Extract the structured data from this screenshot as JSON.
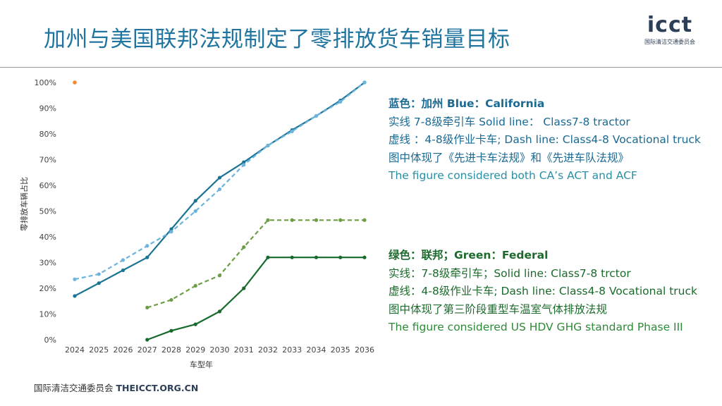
{
  "header": {
    "title": "加州与美国联邦法规制定了零排放货车销量目标"
  },
  "logo": {
    "mark": "icct",
    "subtitle": "国际清洁交通委员会"
  },
  "notes": {
    "california": {
      "heading": "蓝色：加州  Blue：California",
      "lines": [
        "实线 7-8级牵引车 Solid line：  Class7-8 tractor",
        "虚线 ：4-8级作业卡车; Dash line: Class4-8 Vocational truck",
        "图中体现了《先进卡车法规》和《先进车队法规》",
        "The figure considered both CA’s ACT and ACF"
      ]
    },
    "federal": {
      "heading": "绿色：联邦；Green：Federal",
      "lines": [
        "实线：7-8级牵引车；Solid line: Class7-8 trctor",
        "虚线：4-8级作业卡车; Dash line: Class4-8 Vocational truck",
        "图中体现了第三阶段重型车温室气体排放法规",
        "The figure considered US HDV GHG standard Phase III"
      ]
    }
  },
  "footer": {
    "org": "国际清洁交通委员会",
    "site": "THEICCT.ORG.CN"
  },
  "colors": {
    "ca_solid": "#1a7394",
    "ca_dash": "#6cb4dd",
    "fed_solid": "#166b2c",
    "fed_dash": "#6c9e43",
    "marker": "#ee8a35"
  },
  "chart_data": {
    "type": "line",
    "x": [
      2024,
      2025,
      2026,
      2027,
      2028,
      2029,
      2030,
      2031,
      2032,
      2033,
      2034,
      2035,
      2036
    ],
    "xlabel": "车型年",
    "ylabel": "零排放车辆占比",
    "ylim": [
      0,
      100
    ],
    "yticks": [
      0,
      10,
      20,
      30,
      40,
      50,
      60,
      70,
      80,
      90,
      100
    ],
    "ytick_labels": [
      "0%",
      "10%",
      "20%",
      "30%",
      "40%",
      "50%",
      "60%",
      "70%",
      "80%",
      "90%",
      "100%"
    ],
    "grid": false,
    "series": [
      {
        "name": "California Class7-8 tractor",
        "style": "solid",
        "color": "#1a7394",
        "values": [
          17,
          22,
          27,
          32,
          43,
          54,
          63,
          69,
          75.5,
          81.5,
          87,
          93,
          100
        ]
      },
      {
        "name": "California Class4-8 vocational truck",
        "style": "dash",
        "color": "#6cb4dd",
        "values": [
          23.5,
          25.5,
          31,
          36.5,
          42,
          50,
          58.5,
          68,
          75.5,
          81,
          87,
          92.5,
          100
        ]
      },
      {
        "name": "Federal Class4-8 vocational truck",
        "style": "dash",
        "color": "#6c9e43",
        "values": [
          null,
          null,
          null,
          12.5,
          15.5,
          21,
          25,
          36,
          46.5,
          46.5,
          46.5,
          46.5,
          46.5
        ]
      },
      {
        "name": "Federal Class7-8 tractor",
        "style": "solid",
        "color": "#166b2c",
        "values": [
          null,
          null,
          null,
          0,
          3.5,
          6,
          11,
          20,
          32,
          32,
          32,
          32,
          32
        ]
      }
    ],
    "annotations": [
      {
        "x": 2024,
        "y": 100,
        "marker": "dot",
        "color": "#ee8a35"
      }
    ]
  }
}
